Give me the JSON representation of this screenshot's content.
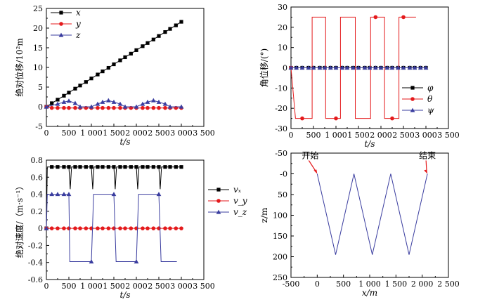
{
  "chart_data": [
    {
      "type": "line",
      "xlabel": "t/s",
      "ylabel": "绝对位移/10²m",
      "xlim": [
        0,
        3500
      ],
      "ylim": [
        -5,
        25
      ],
      "xticks": [
        "0",
        "500",
        "1 000",
        "1 500",
        "2 000",
        "2 500",
        "3 000",
        "3 500"
      ],
      "yticks": [
        "-5",
        "0",
        "5",
        "10",
        "15",
        "20",
        "25"
      ],
      "legend_position": "top-left",
      "series": [
        {
          "name": "x",
          "color": "#000000",
          "marker": "square",
          "x": [
            0,
            120,
            250,
            390,
            500,
            640,
            750,
            880,
            1000,
            1140,
            1250,
            1380,
            1500,
            1640,
            1750,
            1880,
            2000,
            2140,
            2250,
            2380,
            2500,
            2640,
            2750,
            2880,
            3000
          ],
          "y": [
            0,
            0.9,
            1.8,
            2.8,
            3.6,
            4.6,
            5.4,
            6.3,
            7.2,
            8.2,
            9.0,
            9.9,
            10.8,
            11.8,
            12.6,
            13.5,
            14.4,
            15.4,
            16.2,
            17.1,
            18.0,
            19.0,
            19.8,
            20.7,
            21.6
          ]
        },
        {
          "name": "y",
          "color": "#e41a1c",
          "marker": "circle",
          "x": [
            0,
            120,
            250,
            390,
            500,
            640,
            750,
            880,
            1000,
            1140,
            1250,
            1380,
            1500,
            1640,
            1750,
            1880,
            2000,
            2140,
            2250,
            2380,
            2500,
            2640,
            2750,
            2880,
            3000
          ],
          "y": [
            0,
            -0.3,
            -0.3,
            -0.3,
            -0.3,
            -0.3,
            -0.3,
            -0.3,
            -0.3,
            -0.3,
            -0.3,
            -0.3,
            -0.3,
            -0.3,
            -0.3,
            -0.3,
            -0.3,
            -0.3,
            -0.3,
            -0.3,
            -0.3,
            -0.3,
            -0.3,
            -0.3,
            -0.3
          ]
        },
        {
          "name": "z",
          "color": "#3a3d9f",
          "marker": "triangle",
          "x": [
            0,
            250,
            390,
            500,
            640,
            750,
            1000,
            1140,
            1250,
            1380,
            1500,
            1640,
            1750,
            2000,
            2140,
            2250,
            2380,
            2500,
            2640,
            2750,
            3000
          ],
          "y": [
            0,
            0.7,
            1.2,
            1.5,
            0.9,
            0,
            0,
            0.7,
            1.2,
            1.6,
            1.2,
            0.7,
            0,
            0,
            0.7,
            1.2,
            1.6,
            1.2,
            0.7,
            0,
            0
          ]
        }
      ]
    },
    {
      "type": "line",
      "xlabel": "t/s",
      "ylabel": "角位移/(°)",
      "xlim": [
        0,
        3500
      ],
      "ylim": [
        -30,
        30
      ],
      "xticks": [
        "0",
        "500",
        "1 000",
        "1 500",
        "2 000",
        "2 500",
        "3 000",
        "3 500"
      ],
      "yticks": [
        "-30",
        "-20",
        "-10",
        "0",
        "10",
        "20",
        "30"
      ],
      "legend_position": "bottom-right",
      "series": [
        {
          "name": "φ",
          "color": "#000000",
          "marker": "square",
          "x": [
            0,
            120,
            250,
            390,
            500,
            640,
            750,
            880,
            1000,
            1140,
            1250,
            1380,
            1500,
            1640,
            1750,
            1880,
            2000,
            2140,
            2250,
            2380,
            2500,
            2640,
            2750,
            2880,
            3000
          ],
          "y": [
            0,
            0,
            0,
            0,
            0,
            0,
            0,
            0,
            0,
            0,
            0,
            0,
            0,
            0,
            0,
            0,
            0,
            0,
            0,
            0,
            0,
            0,
            0,
            0,
            0
          ]
        },
        {
          "name": "θ",
          "color": "#e41a1c",
          "marker": "circle",
          "x": [
            0,
            100,
            250,
            350,
            470,
            470,
            520,
            580,
            690,
            770,
            770,
            820,
            900,
            1000,
            1100,
            1100,
            1150,
            1220,
            1320,
            1430,
            1430,
            1480,
            1550,
            1650,
            1770,
            1770,
            1820,
            1880,
            1950,
            2020,
            2080,
            2080,
            2130,
            2180,
            2250,
            2320,
            2400,
            2400,
            2450,
            2500,
            2600,
            2700,
            2780
          ],
          "y": [
            0,
            -25,
            -25,
            -25,
            -25,
            25,
            25,
            25,
            25,
            25,
            -25,
            -25,
            -25,
            -25,
            -25,
            25,
            25,
            25,
            25,
            25,
            -25,
            -25,
            -25,
            -25,
            -25,
            25,
            25,
            25,
            25,
            25,
            25,
            -25,
            -25,
            -25,
            -25,
            -25,
            -25,
            25,
            25,
            25,
            25,
            25,
            25
          ]
        },
        {
          "name": "ψ",
          "color": "#3a3d9f",
          "marker": "triangle",
          "x": [
            0,
            120,
            250,
            390,
            500,
            640,
            750,
            880,
            1000,
            1140,
            1250,
            1380,
            1500,
            1640,
            1750,
            1880,
            2000,
            2140,
            2250,
            2380,
            2500,
            2640,
            2750,
            2880,
            3000
          ],
          "y": [
            0,
            0,
            0,
            0,
            0,
            0,
            0,
            0,
            0,
            0,
            0,
            0,
            0,
            0,
            0,
            0,
            0,
            0,
            0,
            0,
            0,
            0,
            0,
            0,
            0
          ]
        }
      ]
    },
    {
      "type": "line",
      "xlabel": "t/s",
      "ylabel": "绝对速度/（m·s⁻¹）",
      "xlim": [
        0,
        3500
      ],
      "ylim": [
        -0.6,
        0.8
      ],
      "xticks": [
        "0",
        "500",
        "1 000",
        "1 500",
        "2 000",
        "2 500",
        "3 000",
        "3 500"
      ],
      "yticks": [
        "-0.6",
        "-0.4",
        "-0.2",
        "0",
        "0.2",
        "0.4",
        "0.6",
        "0.8"
      ],
      "legend_position": "right",
      "series": [
        {
          "name": "vₓ",
          "color": "#000000",
          "marker": "square",
          "x": [
            0,
            20,
            120,
            250,
            390,
            500,
            530,
            560,
            640,
            750,
            880,
            1000,
            1030,
            1060,
            1140,
            1250,
            1380,
            1500,
            1530,
            1560,
            1640,
            1750,
            1880,
            2000,
            2030,
            2060,
            2140,
            2250,
            2380,
            2500,
            2530,
            2560,
            2640,
            2750,
            2880,
            3000
          ],
          "y": [
            0,
            0.72,
            0.72,
            0.72,
            0.72,
            0.72,
            0.46,
            0.72,
            0.72,
            0.72,
            0.72,
            0.72,
            0.46,
            0.72,
            0.72,
            0.72,
            0.72,
            0.72,
            0.46,
            0.72,
            0.72,
            0.72,
            0.72,
            0.72,
            0.46,
            0.72,
            0.72,
            0.72,
            0.72,
            0.72,
            0.46,
            0.72,
            0.72,
            0.72,
            0.72,
            0.72
          ]
        },
        {
          "name": "v_y",
          "color": "#e41a1c",
          "marker": "circle",
          "x": [
            0,
            120,
            250,
            390,
            500,
            640,
            750,
            880,
            1000,
            1140,
            1250,
            1380,
            1500,
            1640,
            1750,
            1880,
            2000,
            2140,
            2250,
            2380,
            2500,
            2640,
            2750,
            2880,
            3000
          ],
          "y": [
            0,
            0,
            0,
            0,
            0,
            0,
            0,
            0,
            0,
            0,
            0,
            0,
            0,
            0,
            0,
            0,
            0,
            0,
            0,
            0,
            0,
            0,
            0,
            0,
            0
          ]
        },
        {
          "name": "v_z",
          "color": "#3a3d9f",
          "marker": "triangle",
          "x": [
            0,
            20,
            120,
            250,
            390,
            500,
            520,
            580,
            690,
            850,
            900,
            1000,
            1050,
            1100,
            1220,
            1400,
            1500,
            1550,
            1600,
            1720,
            1900,
            2000,
            2050,
            2100,
            2200,
            2400,
            2500,
            2550,
            2600,
            2700,
            2900
          ],
          "y": [
            0,
            0.4,
            0.4,
            0.4,
            0.4,
            0.4,
            -0.39,
            -0.39,
            -0.39,
            -0.39,
            -0.39,
            -0.39,
            0.4,
            0.4,
            0.4,
            0.4,
            0.4,
            -0.39,
            -0.39,
            -0.39,
            -0.39,
            -0.39,
            0.4,
            0.4,
            0.4,
            0.4,
            0.4,
            -0.39,
            -0.39,
            -0.39,
            -0.39
          ]
        }
      ]
    },
    {
      "type": "line",
      "xlabel": "x/m",
      "ylabel": "z/m",
      "xlim": [
        -500,
        2500
      ],
      "ylim": [
        -50,
        250
      ],
      "y_reversed": true,
      "xticks": [
        "-500",
        "0",
        "500",
        "1 000",
        "1 500",
        "2 000",
        "2 500"
      ],
      "yticks": [
        "-50",
        "-0",
        "50",
        "100",
        "150",
        "200",
        "250"
      ],
      "series": [
        {
          "name": "",
          "color": "#3a3d9f",
          "x": [
            0,
            350,
            700,
            1050,
            1400,
            1750,
            2100
          ],
          "y": [
            0,
            195,
            0,
            195,
            0,
            195,
            0
          ]
        }
      ],
      "annotations": [
        {
          "text": "开始",
          "x": 0,
          "y": 0
        },
        {
          "text": "结束",
          "x": 2100,
          "y": 0
        }
      ]
    }
  ]
}
